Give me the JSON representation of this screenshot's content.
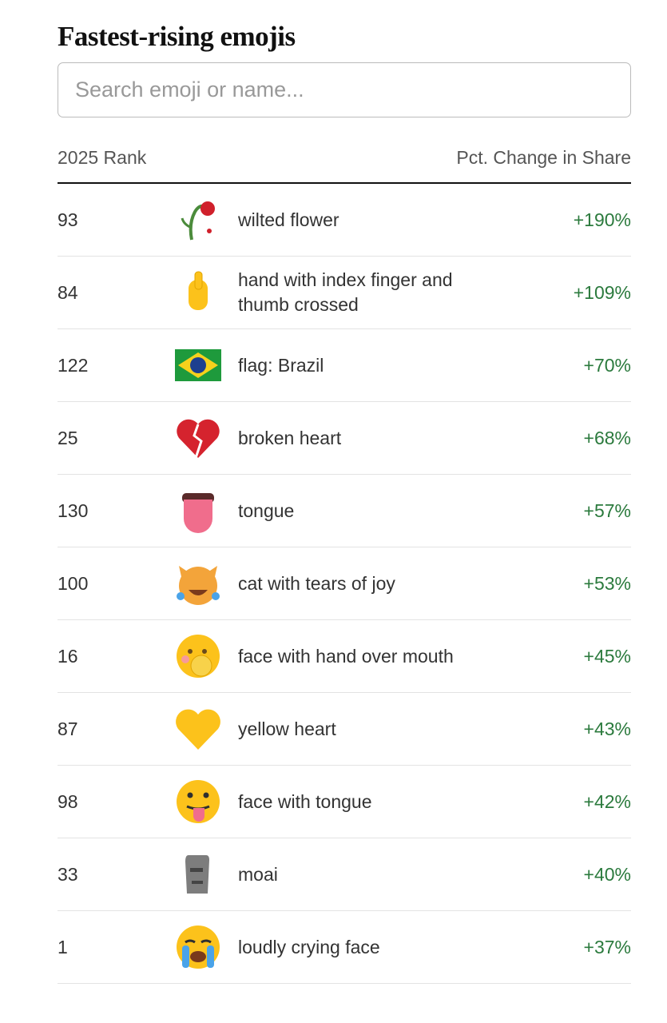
{
  "header": {
    "title": "Fastest-rising emojis",
    "search_placeholder": "Search emoji or name..."
  },
  "table": {
    "columns": [
      "2025 Rank",
      "Pct. Change in Share"
    ],
    "rows": [
      [
        93,
        "wilted flower",
        "+190%"
      ],
      [
        84,
        "hand with index finger and thumb crossed",
        "+109%"
      ],
      [
        122,
        "flag: Brazil",
        "+70%"
      ],
      [
        25,
        "broken heart",
        "+68%"
      ],
      [
        130,
        "tongue",
        "+57%"
      ],
      [
        100,
        "cat with tears of joy",
        "+53%"
      ],
      [
        16,
        "face with hand over mouth",
        "+45%"
      ],
      [
        87,
        "yellow heart",
        "+43%"
      ],
      [
        98,
        "face with tongue",
        "+42%"
      ],
      [
        33,
        "moai",
        "+40%"
      ],
      [
        1,
        "loudly crying face",
        "+37%"
      ]
    ]
  }
}
